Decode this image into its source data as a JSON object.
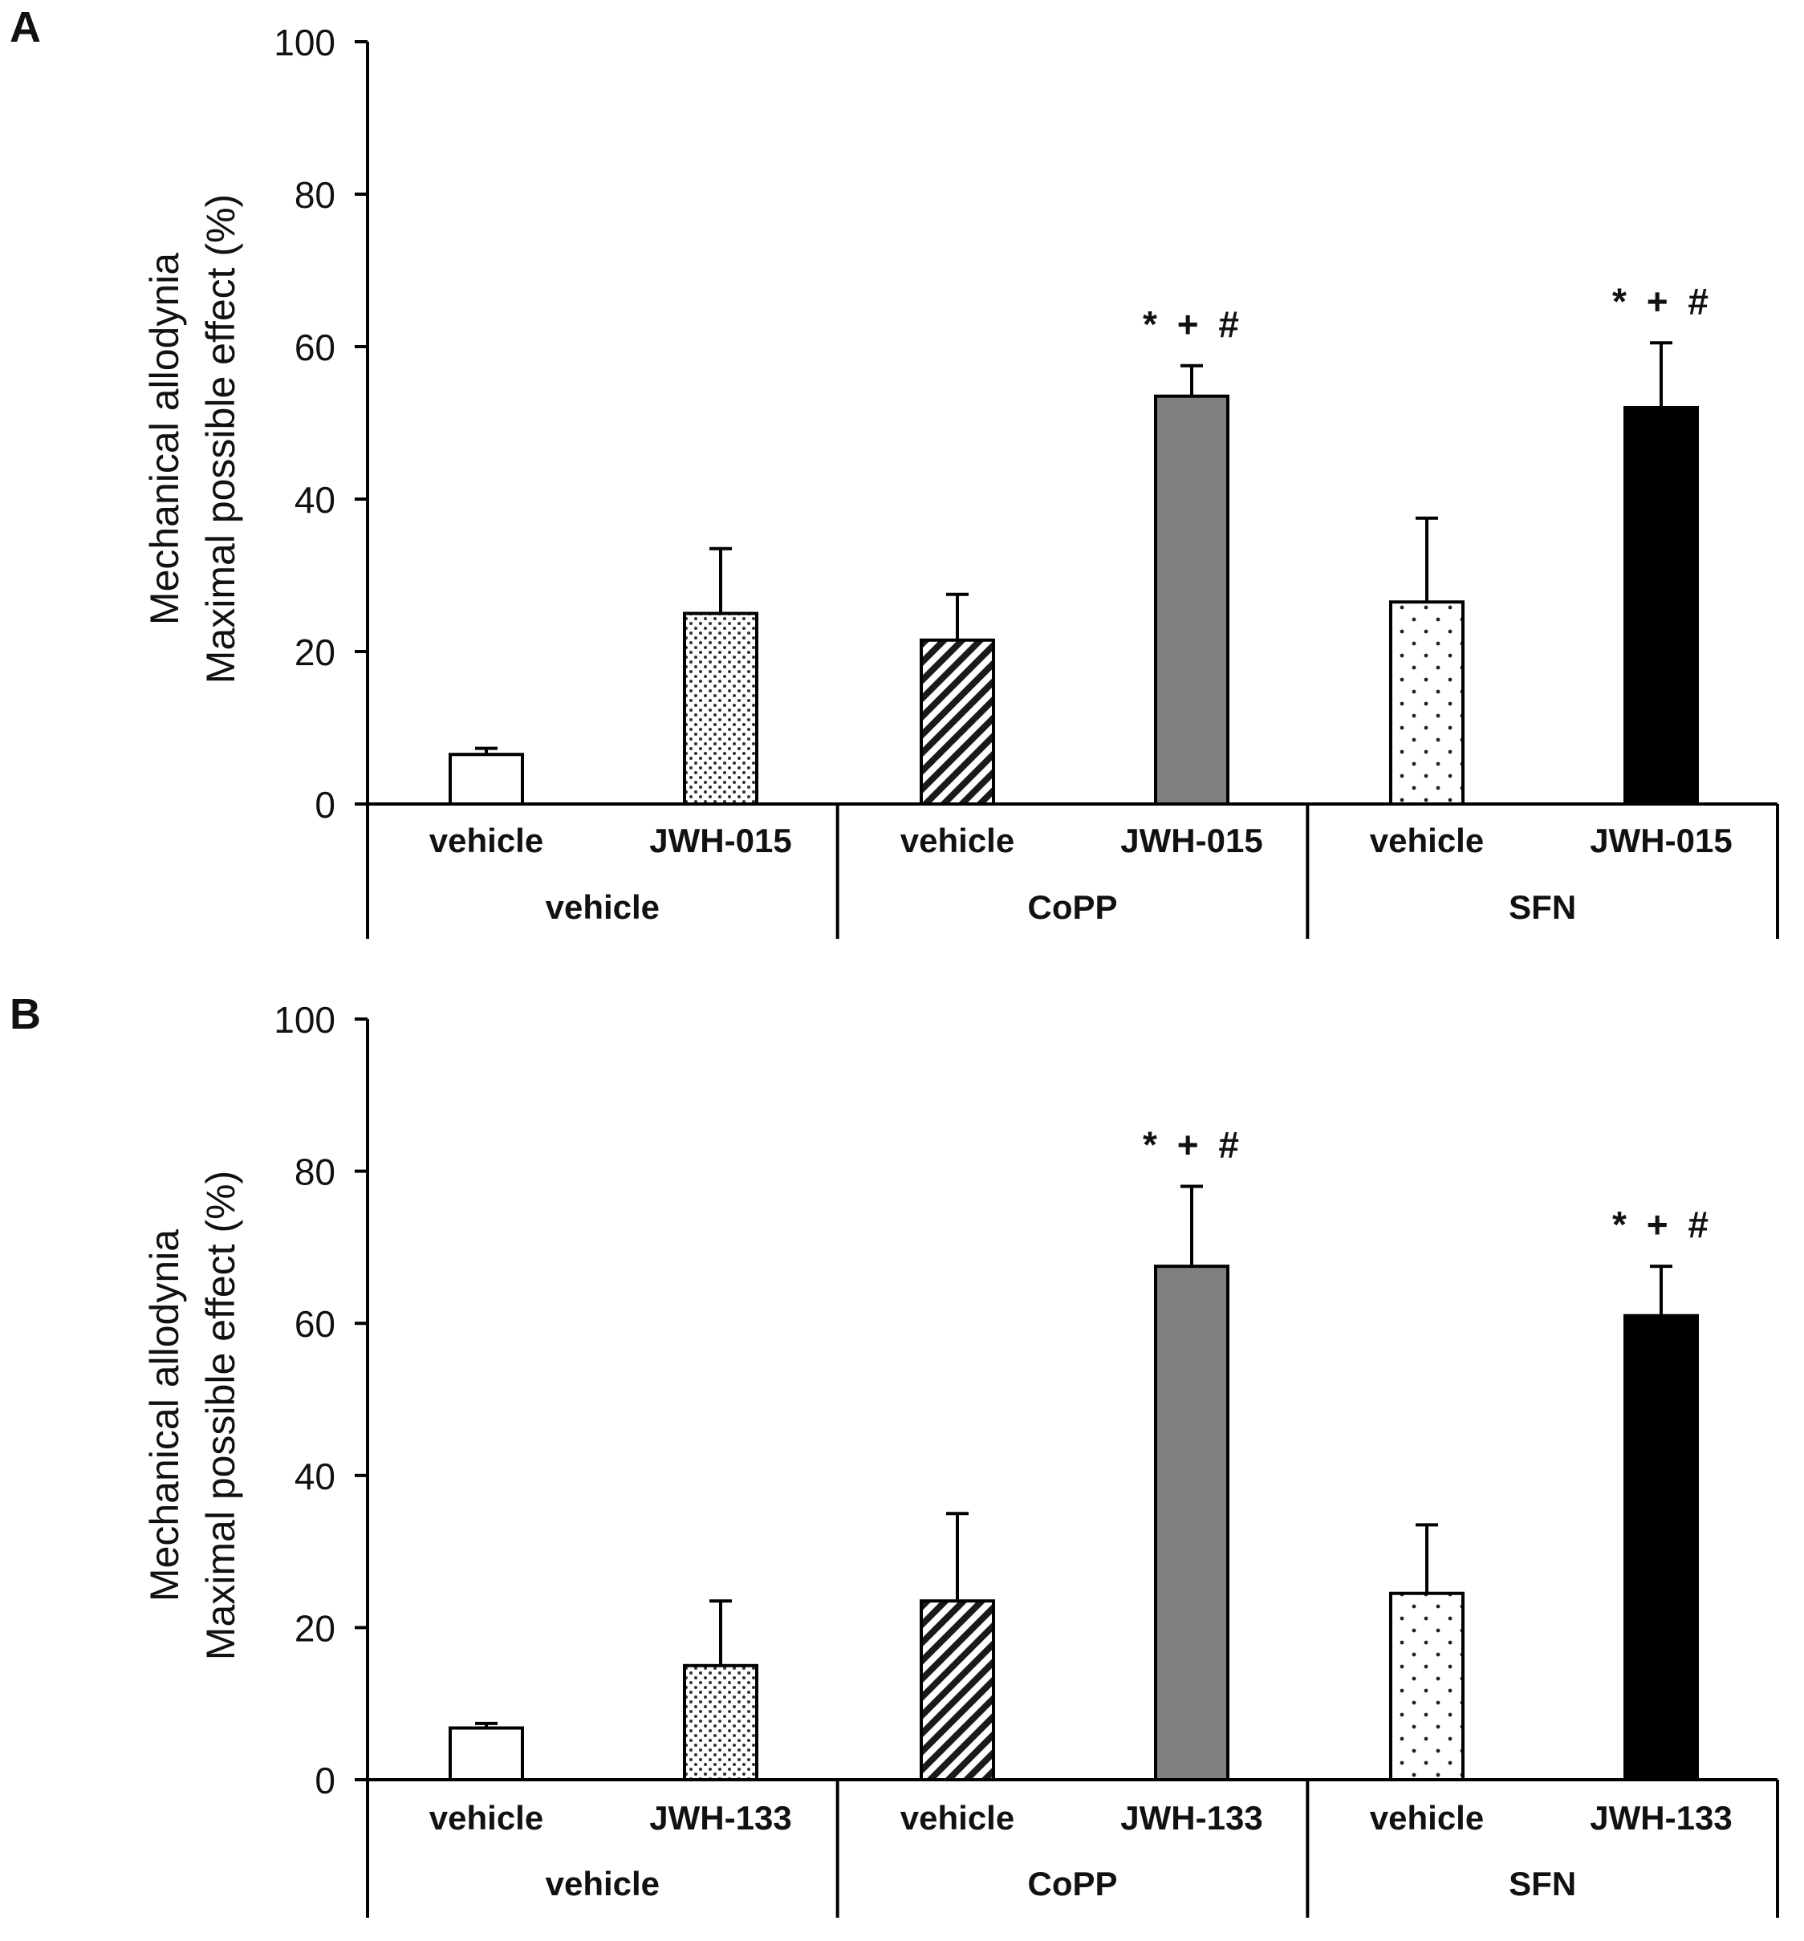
{
  "chart_data": [
    {
      "panel_label": "A",
      "type": "bar",
      "ylabel": [
        "Mechanical allodynia",
        "Maximal possible effect (%)"
      ],
      "ylim": [
        0,
        100
      ],
      "yticks": [
        0,
        20,
        40,
        60,
        80,
        100
      ],
      "categories": [
        "vehicle",
        "JWH-015",
        "vehicle",
        "JWH-015",
        "vehicle",
        "JWH-015"
      ],
      "groups": [
        "vehicle",
        "CoPP",
        "SFN"
      ],
      "values": [
        6.5,
        25,
        21.5,
        53.5,
        26.5,
        52
      ],
      "errors": [
        0.8,
        8.5,
        6,
        4,
        11,
        8.5
      ],
      "annotations": [
        "",
        "",
        "",
        "* + #",
        "",
        "* + #"
      ],
      "fills": [
        "white",
        "fine-dots",
        "hatch",
        "#7f7f7f",
        "sparse-dots",
        "#000000"
      ]
    },
    {
      "panel_label": "B",
      "type": "bar",
      "ylabel": [
        "Mechanical allodynia",
        "Maximal possible effect (%)"
      ],
      "ylim": [
        0,
        100
      ],
      "yticks": [
        0,
        20,
        40,
        60,
        80,
        100
      ],
      "categories": [
        "vehicle",
        "JWH-133",
        "vehicle",
        "JWH-133",
        "vehicle",
        "JWH-133"
      ],
      "groups": [
        "vehicle",
        "CoPP",
        "SFN"
      ],
      "values": [
        6.8,
        15,
        23.5,
        67.5,
        24.5,
        61
      ],
      "errors": [
        0.6,
        8.5,
        11.5,
        10.5,
        9,
        6.5
      ],
      "annotations": [
        "",
        "",
        "",
        "* + #",
        "",
        "* + #"
      ],
      "fills": [
        "white",
        "fine-dots",
        "hatch",
        "#7f7f7f",
        "sparse-dots",
        "#000000"
      ]
    }
  ]
}
